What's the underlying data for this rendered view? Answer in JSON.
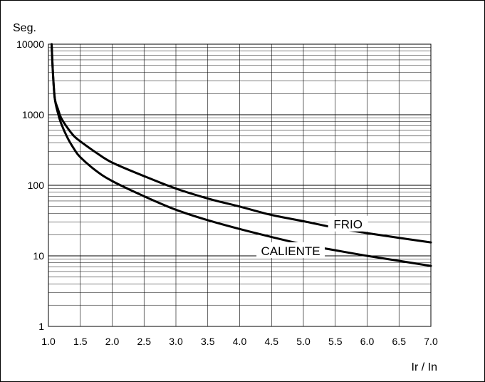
{
  "chart_data": {
    "type": "line",
    "title": "",
    "xlabel": "Ir / In",
    "ylabel": "Seg.",
    "x_scale": "linear",
    "y_scale": "log",
    "xlim": [
      1.0,
      7.0
    ],
    "ylim": [
      1,
      10000
    ],
    "grid": true,
    "x_ticks": [
      "1.0",
      "1.5",
      "2.0",
      "2.5",
      "3.0",
      "3.5",
      "4.0",
      "4.5",
      "5.0",
      "5.5",
      "6.0",
      "6.5",
      "7.0"
    ],
    "y_ticks": [
      "1",
      "10",
      "100",
      "1000",
      "10000"
    ],
    "series": [
      {
        "name": "FRIO",
        "color": "#000000",
        "x": [
          1.05,
          1.07,
          1.1,
          1.15,
          1.2,
          1.3,
          1.4,
          1.5,
          1.75,
          2.0,
          2.5,
          3.0,
          3.5,
          4.0,
          4.5,
          5.0,
          5.5,
          6.0,
          6.5,
          7.0
        ],
        "y": [
          10000,
          4000,
          1700,
          1200,
          900,
          650,
          500,
          420,
          290,
          210,
          135,
          90,
          65,
          50,
          38,
          31,
          25,
          21,
          18,
          15.5
        ]
      },
      {
        "name": "CALIENTE",
        "color": "#000000",
        "x": [
          1.05,
          1.07,
          1.1,
          1.15,
          1.2,
          1.3,
          1.4,
          1.5,
          1.75,
          2.0,
          2.5,
          3.0,
          3.5,
          4.0,
          4.5,
          5.0,
          5.5,
          6.0,
          6.5,
          7.0
        ],
        "y": [
          10000,
          4000,
          1700,
          1050,
          750,
          470,
          330,
          250,
          160,
          115,
          70,
          45,
          32,
          24,
          18.5,
          14.5,
          12,
          10,
          8.5,
          7.2
        ]
      }
    ]
  }
}
